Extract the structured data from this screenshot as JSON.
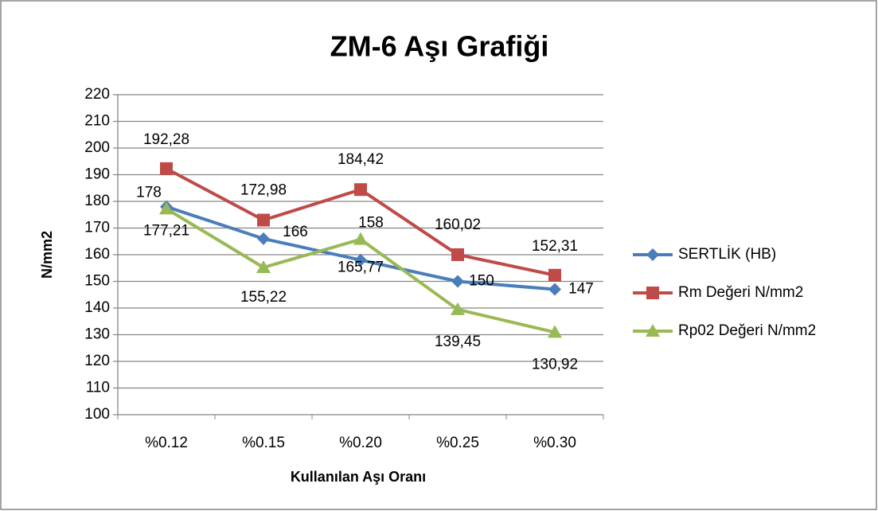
{
  "chart_data": {
    "type": "line",
    "title": "ZM-6 Aşı Grafiği",
    "x_label": "Kullanılan Aşı  Oranı",
    "y_label": "N/mm2",
    "categories": [
      "%0.12",
      "%0.15",
      "%0.20",
      "%0.25",
      "%0.30"
    ],
    "series": [
      {
        "name": "SERTLİK (HB)",
        "color": "#4a7ebb",
        "marker": "diamond",
        "values": [
          178,
          166,
          158,
          150,
          147
        ]
      },
      {
        "name": "Rm Değeri N/mm2",
        "color": "#be4b48",
        "marker": "square",
        "values": [
          192.28,
          172.98,
          184.42,
          160.02,
          152.31
        ],
        "value_labels": [
          "192,28",
          "172,98",
          "184,42",
          "160,02",
          "152,31"
        ]
      },
      {
        "name": "Rp02 Değeri N/mm2",
        "color": "#98b954",
        "marker": "triangle",
        "values": [
          177.21,
          155.22,
          165.77,
          139.45,
          130.92
        ],
        "value_labels": [
          "177,21",
          "155,22",
          "165,77",
          "139,45",
          "130,92"
        ]
      }
    ],
    "ylim": [
      100,
      220
    ],
    "yticks": [
      100,
      110,
      120,
      130,
      140,
      150,
      160,
      170,
      180,
      190,
      200,
      210,
      220
    ],
    "grid": true,
    "legend": "right"
  }
}
